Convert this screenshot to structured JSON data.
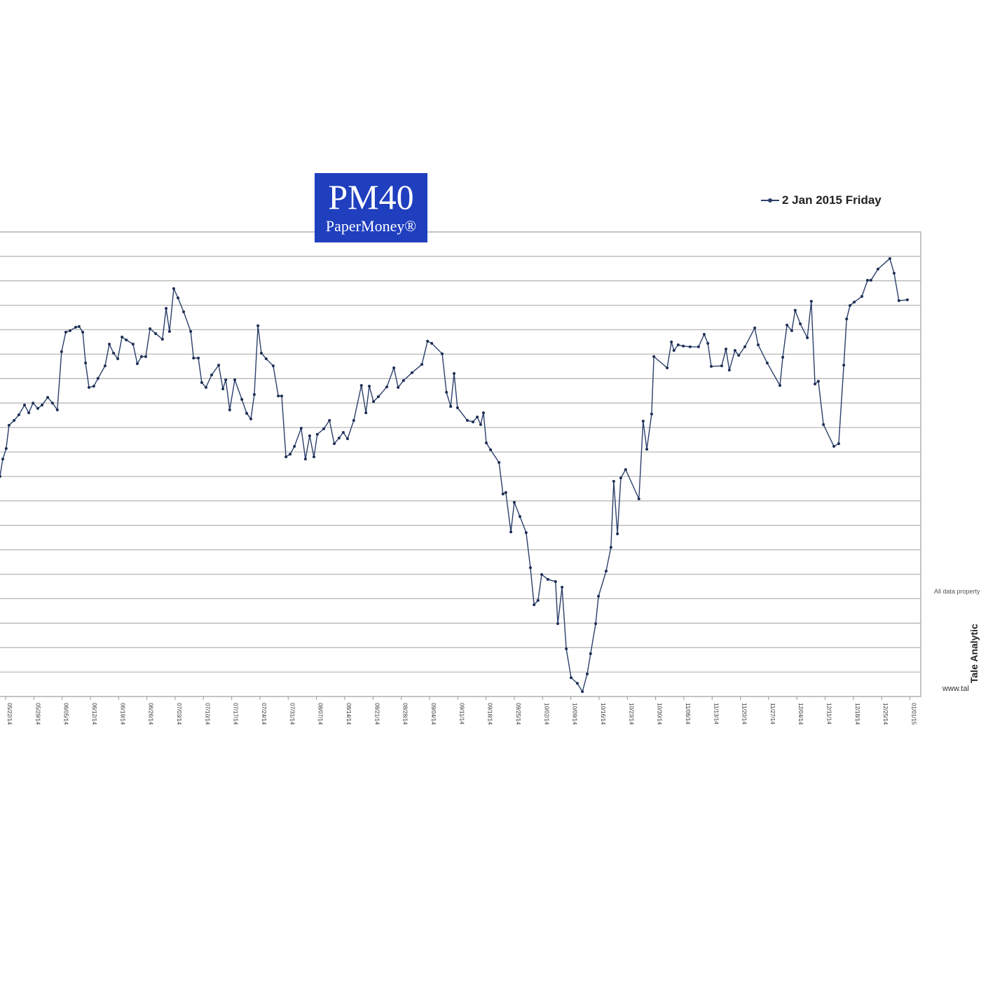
{
  "logo": {
    "title": "PM40",
    "subtitle": "PaperMoney®"
  },
  "legend": {
    "label": "2 Jan 2015 Friday"
  },
  "side": {
    "note": "All data property",
    "brand": "Tale Analytic",
    "url": "www.tal"
  },
  "colors": {
    "line": "#2b3f6b",
    "grid": "#b8b8b8",
    "logo_bg": "#1f3fbf"
  },
  "chart_data": {
    "type": "line",
    "title": "PM40",
    "series_name": "2 Jan 2015 Friday",
    "xlabel": "",
    "ylabel": "",
    "x_unit": "weeks since 05/22/14",
    "y_unit": "gridline steps (y tick labels not visible)",
    "ylim": [
      0,
      19
    ],
    "grid": true,
    "legend_position": "top-right",
    "x_tick_labels": [
      "05/22/14",
      "05/29/14",
      "06/05/14",
      "06/12/14",
      "06/19/14",
      "06/26/14",
      "07/03/14",
      "07/10/14",
      "07/17/14",
      "07/24/14",
      "07/31/14",
      "08/07/14",
      "08/14/14",
      "08/21/14",
      "08/28/14",
      "09/04/14",
      "09/11/14",
      "09/18/14",
      "09/25/14",
      "10/02/14",
      "10/09/14",
      "10/16/14",
      "10/23/14",
      "10/30/14",
      "11/06/14",
      "11/13/14",
      "11/20/14",
      "11/27/14",
      "12/04/14",
      "12/11/14",
      "12/18/14",
      "12/25/14",
      "01/01/15"
    ],
    "x": [
      -0.2,
      -0.1,
      0.02,
      0.12,
      0.3,
      0.47,
      0.67,
      0.82,
      0.97,
      1.14,
      1.29,
      1.49,
      1.66,
      1.83,
      1.98,
      2.13,
      2.28,
      2.48,
      2.6,
      2.73,
      2.83,
      2.95,
      3.12,
      3.27,
      3.52,
      3.67,
      3.82,
      3.97,
      4.12,
      4.27,
      4.51,
      4.66,
      4.81,
      4.96,
      5.11,
      5.31,
      5.55,
      5.68,
      5.8,
      5.95,
      6.1,
      6.3,
      6.55,
      6.65,
      6.82,
      6.94,
      7.09,
      7.29,
      7.54,
      7.69,
      7.79,
      7.93,
      8.11,
      8.36,
      8.53,
      8.68,
      8.8,
      8.93,
      9.05,
      9.22,
      9.47,
      9.65,
      9.77,
      9.92,
      10.07,
      10.22,
      10.46,
      10.61,
      10.76,
      10.91,
      11.03,
      11.26,
      11.46,
      11.63,
      11.8,
      11.95,
      12.1,
      12.32,
      12.59,
      12.75,
      12.87,
      13.02,
      13.19,
      13.49,
      13.74,
      13.89,
      14.08,
      14.38,
      14.73,
      14.93,
      15.08,
      15.45,
      15.6,
      15.75,
      15.87,
      15.99,
      16.34,
      16.54,
      16.69,
      16.81,
      16.91,
      17.01,
      17.16,
      17.46,
      17.6,
      17.7,
      17.88,
      18.0,
      18.2,
      18.42,
      18.57,
      18.7,
      18.84,
      18.97,
      19.19,
      19.46,
      19.54,
      19.69,
      19.84,
      20.01,
      20.23,
      20.41,
      20.58,
      20.7,
      20.88,
      20.98,
      21.25,
      21.42,
      21.52,
      21.65,
      21.77,
      21.94,
      22.41,
      22.56,
      22.69,
      22.86,
      22.94,
      23.41,
      23.56,
      23.65,
      23.8,
      23.98,
      24.22,
      24.52,
      24.72,
      24.85,
      24.97,
      25.34,
      25.49,
      25.61,
      25.81,
      25.94,
      26.16,
      26.51,
      26.63,
      26.95,
      27.4,
      27.5,
      27.65,
      27.82,
      27.94,
      28.12,
      28.37,
      28.51,
      28.64,
      28.76,
      28.94,
      29.31,
      29.48,
      29.66,
      29.76,
      29.88,
      30.03,
      30.3,
      30.5,
      30.62,
      30.87,
      31.29,
      31.44,
      31.61,
      31.91
    ],
    "y": [
      9.0,
      9.71,
      10.14,
      11.09,
      11.29,
      11.52,
      11.92,
      11.6,
      12.0,
      11.78,
      11.92,
      12.23,
      12.0,
      11.72,
      14.1,
      14.9,
      14.96,
      15.1,
      15.13,
      14.9,
      13.64,
      12.64,
      12.69,
      13.01,
      13.52,
      14.41,
      14.04,
      13.81,
      14.7,
      14.58,
      14.41,
      13.61,
      13.9,
      13.9,
      15.04,
      14.84,
      14.61,
      15.87,
      14.93,
      16.68,
      16.3,
      15.73,
      14.93,
      13.84,
      13.84,
      12.84,
      12.64,
      13.15,
      13.55,
      12.58,
      12.95,
      11.72,
      12.95,
      12.15,
      11.58,
      11.35,
      12.35,
      15.16,
      14.04,
      13.81,
      13.52,
      12.29,
      12.29,
      9.8,
      9.91,
      10.23,
      10.97,
      9.71,
      10.66,
      9.8,
      10.72,
      10.95,
      11.29,
      10.34,
      10.57,
      10.8,
      10.54,
      11.29,
      12.72,
      11.6,
      12.69,
      12.06,
      12.26,
      12.66,
      13.44,
      12.64,
      12.92,
      13.24,
      13.58,
      14.53,
      14.44,
      14.01,
      12.44,
      11.86,
      13.21,
      11.81,
      11.29,
      11.23,
      11.43,
      11.12,
      11.6,
      10.37,
      10.09,
      9.57,
      8.28,
      8.34,
      6.73,
      7.94,
      7.36,
      6.7,
      5.27,
      3.75,
      3.93,
      4.99,
      4.79,
      4.7,
      2.98,
      4.47,
      1.95,
      0.77,
      0.54,
      0.2,
      0.92,
      1.75,
      2.98,
      4.1,
      5.13,
      6.1,
      8.8,
      6.65,
      8.94,
      9.28,
      8.08,
      11.26,
      10.11,
      11.55,
      13.9,
      13.44,
      14.5,
      14.15,
      14.38,
      14.33,
      14.3,
      14.3,
      14.81,
      14.44,
      13.5,
      13.52,
      14.21,
      13.35,
      14.15,
      13.95,
      14.3,
      15.07,
      14.38,
      13.64,
      12.72,
      13.87,
      15.19,
      14.96,
      15.79,
      15.24,
      14.67,
      16.16,
      12.78,
      12.89,
      11.12,
      10.23,
      10.34,
      13.55,
      15.44,
      15.99,
      16.13,
      16.36,
      17.02,
      17.02,
      17.48,
      17.91,
      17.31,
      16.19,
      16.22
    ]
  }
}
